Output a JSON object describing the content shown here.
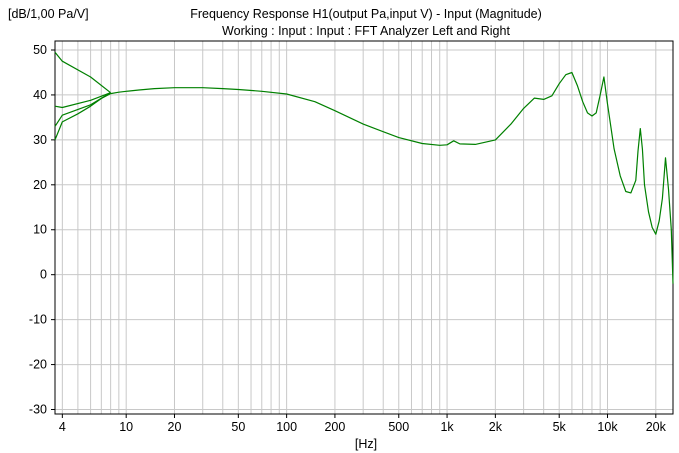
{
  "chart_data": {
    "type": "line",
    "title": "Frequency Response H1(output Pa,input V) - Input (Magnitude)",
    "subtitle": "Working : Input : Input : FFT Analyzer Left and Right",
    "ylabel": "[dB/1,00 Pa/V]",
    "xlabel": "[Hz]",
    "x_scale": "log",
    "xlim": [
      3.6,
      25600
    ],
    "ylim": [
      -31,
      52
    ],
    "grid": true,
    "line_color": "#008000",
    "y_ticks": [
      {
        "v": 50,
        "label": "50"
      },
      {
        "v": 40,
        "label": "40"
      },
      {
        "v": 30,
        "label": "30"
      },
      {
        "v": 20,
        "label": "20"
      },
      {
        "v": 10,
        "label": "10"
      },
      {
        "v": 0,
        "label": "0"
      },
      {
        "v": -10,
        "label": "-10"
      },
      {
        "v": -20,
        "label": "-20"
      },
      {
        "v": -30,
        "label": "-30"
      }
    ],
    "x_ticks": [
      {
        "v": 4,
        "label": "4"
      },
      {
        "v": 10,
        "label": "10"
      },
      {
        "v": 20,
        "label": "20"
      },
      {
        "v": 50,
        "label": "50"
      },
      {
        "v": 100,
        "label": "100"
      },
      {
        "v": 200,
        "label": "200"
      },
      {
        "v": 500,
        "label": "500"
      },
      {
        "v": 1000,
        "label": "1k"
      },
      {
        "v": 2000,
        "label": "2k"
      },
      {
        "v": 5000,
        "label": "5k"
      },
      {
        "v": 10000,
        "label": "10k"
      },
      {
        "v": 20000,
        "label": "20k"
      }
    ],
    "series": [
      {
        "x": [
          3.6,
          4,
          5,
          6,
          7,
          8,
          9,
          10,
          12,
          15,
          20,
          30,
          40,
          50,
          70,
          100,
          150,
          200,
          300,
          500,
          700,
          900,
          1000,
          1100,
          1200,
          1500,
          2000,
          2500,
          3000,
          3500,
          4000,
          4500,
          5000,
          5500,
          6000,
          6500,
          7000,
          7500,
          8000,
          8500,
          9000,
          9500,
          10000,
          11000,
          12000,
          13000,
          14000,
          15000,
          15500,
          16000,
          16500,
          17000,
          18000,
          19000,
          20000,
          21000,
          22000,
          23000,
          24000,
          25000,
          25600
        ],
        "y": [
          30,
          34,
          35.8,
          37.5,
          39.2,
          40.3,
          40.6,
          40.8,
          41.1,
          41.4,
          41.6,
          41.6,
          41.4,
          41.2,
          40.8,
          40.2,
          38.5,
          36.5,
          33.5,
          30.5,
          29.2,
          28.8,
          28.9,
          29.8,
          29.1,
          29.0,
          30.0,
          33.5,
          37.0,
          39.3,
          39.0,
          39.8,
          42.5,
          44.5,
          45.0,
          42.0,
          38.5,
          36.0,
          35.3,
          36.0,
          40.0,
          44.0,
          38.0,
          28.0,
          22.0,
          18.5,
          18.2,
          21.0,
          27.5,
          32.5,
          28.0,
          20.0,
          14.0,
          10.5,
          9.0,
          12.0,
          17.0,
          26.0,
          19.0,
          10.0,
          -2.0
        ]
      },
      {
        "x": [
          3.6,
          4,
          6,
          8
        ],
        "y": [
          49.5,
          47.5,
          44.0,
          40.5
        ]
      },
      {
        "x": [
          3.6,
          4,
          6,
          8
        ],
        "y": [
          37.5,
          37.2,
          38.8,
          40.5
        ]
      },
      {
        "x": [
          3.6,
          4,
          6,
          8
        ],
        "y": [
          33.0,
          35.5,
          37.8,
          40.5
        ]
      }
    ]
  }
}
